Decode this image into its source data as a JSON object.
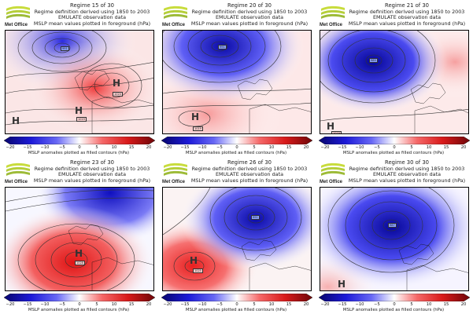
{
  "brand": {
    "logo_text": "Met Office",
    "logo_colors": [
      "#c8dc3c",
      "#a6c23a",
      "#7fa333"
    ]
  },
  "common": {
    "line2": "Regime definition derived using 1850 to 2003",
    "line3": "EMULATE observation data",
    "line4": "MSLP mean values plotted in foreground (hPa)",
    "cbar_label": "MSLP anomalies plotted as filled contours (hPa)",
    "ticks": [
      "−20",
      "−15",
      "−10",
      "−5",
      "0",
      "5",
      "10",
      "15",
      "20"
    ],
    "cbar_min": -20,
    "cbar_max": 20,
    "cbar_colors": [
      "#08056e",
      "#1d1ad8",
      "#5f5ff5",
      "#b8b8fb",
      "#ffffff",
      "#fbbaba",
      "#f55f5f",
      "#d81a1a",
      "#6e0508"
    ]
  },
  "panels": [
    {
      "title": "Regime 15 of 30",
      "high_label": "H",
      "high_values": [
        "1024",
        "1019"
      ],
      "low_values": [
        "991"
      ]
    },
    {
      "title": "Regime 20 of 30",
      "high_label": "H",
      "high_values": [
        "1019"
      ],
      "low_values": [
        "991"
      ]
    },
    {
      "title": "Regime 21 of 30",
      "high_label": "H",
      "high_values": [
        "1019"
      ],
      "low_values": [
        "989"
      ]
    },
    {
      "title": "Regime 23 of 30",
      "high_label": "H",
      "high_values": [
        "1028"
      ],
      "low_values": []
    },
    {
      "title": "Regime 26 of 30",
      "high_label": "H",
      "high_values": [
        "1025"
      ],
      "low_values": [
        "991"
      ]
    },
    {
      "title": "Regime 30 of 30",
      "high_label": "H",
      "high_values": [],
      "low_values": [
        "987"
      ]
    }
  ]
}
